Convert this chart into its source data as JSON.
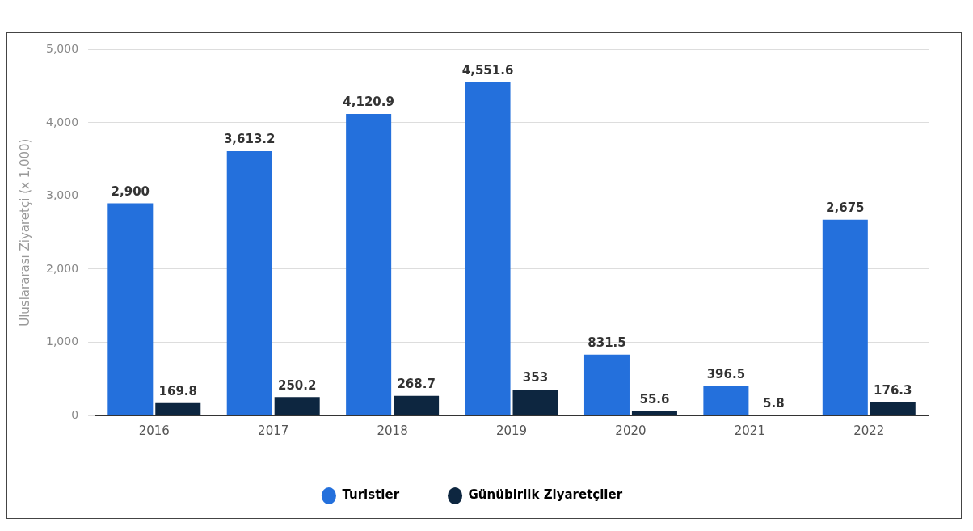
{
  "chart_data": {
    "type": "bar",
    "ylabel": "Uluslararası Ziyaretçi (x 1,000)",
    "categories": [
      "2016",
      "2017",
      "2018",
      "2019",
      "2020",
      "2021",
      "2022"
    ],
    "series": [
      {
        "name": "Turistler",
        "color": "#2470dc",
        "values": [
          2900,
          3613.2,
          4120.9,
          4551.6,
          831.5,
          396.5,
          2675
        ],
        "value_labels": [
          "2,900",
          "3,613.2",
          "4,120.9",
          "4,551.6",
          "831.5",
          "396.5",
          "2,675"
        ]
      },
      {
        "name": "Günübirlik Ziyaretçiler",
        "color": "#0d2640",
        "values": [
          169.8,
          250.2,
          268.7,
          353,
          55.6,
          5.8,
          176.3
        ],
        "value_labels": [
          "169.8",
          "250.2",
          "268.7",
          "353",
          "55.6",
          "5.8",
          "176.3"
        ]
      }
    ],
    "ylim": [
      0,
      5000
    ],
    "yticks": [
      {
        "value": 0,
        "label": "0"
      },
      {
        "value": 1000,
        "label": "1,000"
      },
      {
        "value": 2000,
        "label": "2,000"
      },
      {
        "value": 3000,
        "label": "3,000"
      },
      {
        "value": 4000,
        "label": "4,000"
      },
      {
        "value": 5000,
        "label": "5,000"
      }
    ],
    "grid": "y",
    "legend": "bottom",
    "marker": "circle"
  }
}
